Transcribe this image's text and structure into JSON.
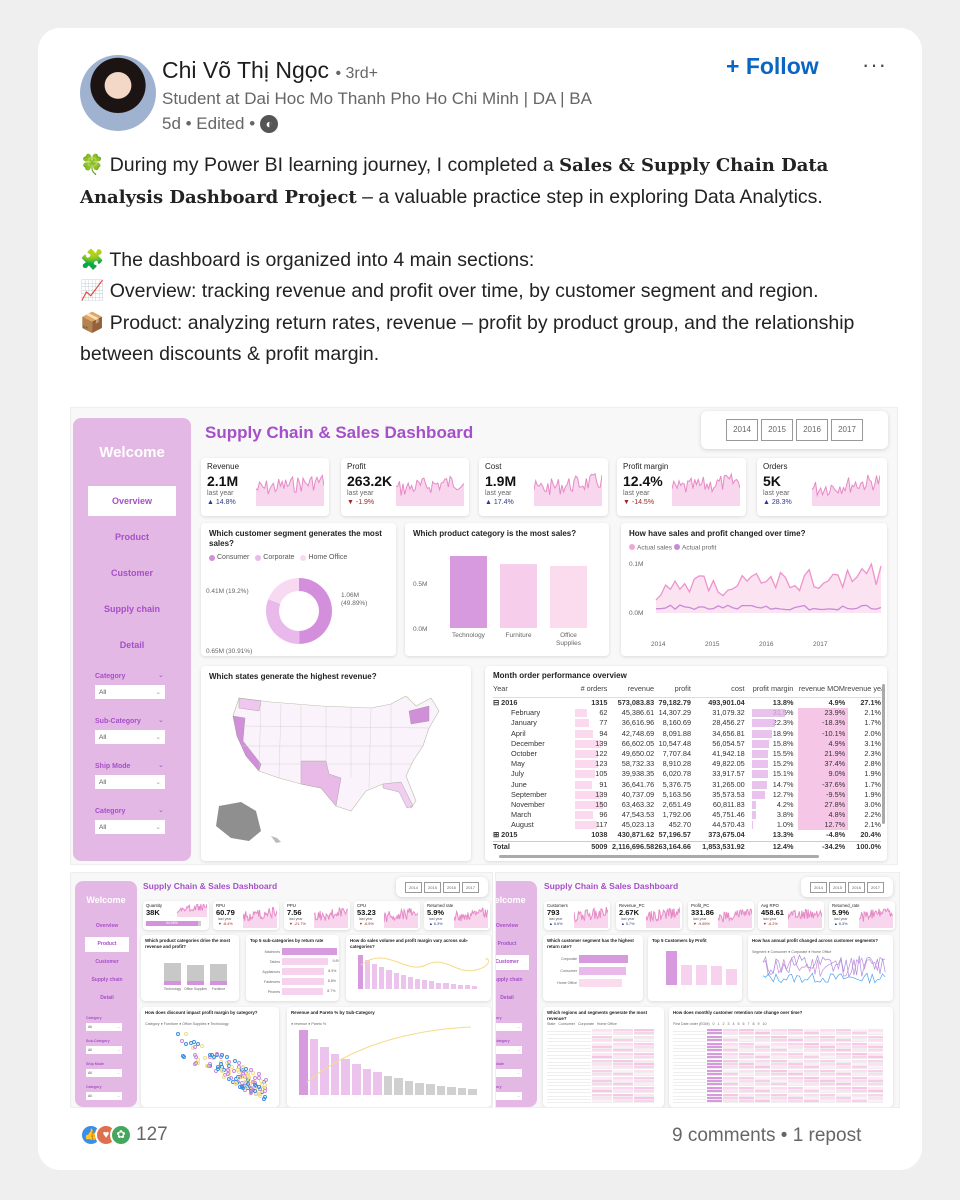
{
  "post": {
    "author": "Chi Võ Thị Ngọc",
    "degree": "• 3rd+",
    "headline": "Student at Dai Hoc Mo Thanh Pho Ho Chi Minh | DA | BA",
    "time": "5d • Edited •",
    "follow_label": "+ Follow",
    "more_label": "···",
    "lines": {
      "l1_emoji": "🍀",
      "l1_a": " During my Power BI learning journey, I completed a ",
      "l1_bold": "Sales & Supply Chain Data Analysis Dashboard Project",
      "l1_b": " – a valuable practice step in exploring Data Analytics.",
      "l2": "🧩 The dashboard is organized into 4 main sections:",
      "l3": "📈 Overview: tracking revenue and profit over time, by customer segment and region.",
      "l4": "📦 Product: analyzing return rates, revenue – profit by product group, and the relationship between discounts & profit margin."
    },
    "reactions_count": "127",
    "social": "9 comments • 1 repost"
  },
  "dashboard": {
    "title": "Supply Chain & Sales Dashboard",
    "welcome": "Welcome",
    "years": [
      "2014",
      "2015",
      "2016",
      "2017"
    ],
    "nav": [
      "Overview",
      "Product",
      "Customer",
      "Supply chain",
      "Detail"
    ],
    "filters": [
      {
        "label": "Category",
        "value": "All"
      },
      {
        "label": "Sub-Category",
        "value": "All"
      },
      {
        "label": "Ship Mode",
        "value": "All"
      },
      {
        "label": "Category",
        "value": "All"
      }
    ],
    "kpis": [
      {
        "label": "Revenue",
        "value": "2.1M",
        "ly": "last year",
        "change": "▲ 14.8%",
        "dir": "up"
      },
      {
        "label": "Profit",
        "value": "263.2K",
        "ly": "last year",
        "change": "▼ -1.9%",
        "dir": "down"
      },
      {
        "label": "Cost",
        "value": "1.9M",
        "ly": "last year",
        "change": "▲ 17.4%",
        "dir": "up"
      },
      {
        "label": "Profit margin",
        "value": "12.4%",
        "ly": "last year",
        "change": "▼ -14.5%",
        "dir": "down"
      },
      {
        "label": "Orders",
        "value": "5K",
        "ly": "last year",
        "change": "▲ 28.3%",
        "dir": "up"
      }
    ],
    "segment": {
      "title": "Which customer segment generates the most sales?",
      "legend": [
        "Consumer",
        "Corporate",
        "Home Office"
      ],
      "colors": [
        "#d38fdb",
        "#e8b9ea",
        "#f8d9f2"
      ],
      "values": [
        49.89,
        30.91,
        19.2
      ],
      "labels": [
        "1.06M (49.89%)",
        "0.65M (30.91%)",
        "0.41M (19.2%)"
      ]
    },
    "category": {
      "title": "Which product category is the most sales?",
      "categories": [
        "Technology",
        "Furniture",
        "Office Supplies"
      ],
      "values": [
        0.8,
        0.71,
        0.69
      ],
      "colors": [
        "#d89ade",
        "#f6cdea",
        "#fbdcef"
      ],
      "ticks": [
        "0.5M",
        "0.0M"
      ]
    },
    "trend": {
      "title": "How have sales and profit changed over time?",
      "legend": [
        "Actual sales",
        "Actual profit"
      ],
      "ticks": [
        "0.1M",
        "0.0M"
      ],
      "years": [
        "2014",
        "2015",
        "2016",
        "2017"
      ]
    },
    "map": {
      "title": "Which states generate the highest revenue?"
    },
    "table": {
      "title": "Month order performance overview",
      "headers": [
        "Year",
        "# orders",
        "revenue",
        "profit",
        "cost",
        "profit margin",
        "revenue MOM",
        "revenue yea"
      ],
      "group": [
        "⊟ 2016",
        "1315",
        "573,083.83",
        "79,182.79",
        "493,901.04",
        "13.8%",
        "4.9%",
        "27.1%"
      ],
      "rows": [
        [
          "February",
          "62",
          "45,386.61",
          "14,307.29",
          "31,079.32",
          "31.5%",
          "23.9%",
          "2.1%"
        ],
        [
          "January",
          "77",
          "36,616.96",
          "8,160.69",
          "28,456.27",
          "22.3%",
          "-18.3%",
          "1.7%"
        ],
        [
          "April",
          "94",
          "42,748.69",
          "8,091.88",
          "34,656.81",
          "18.9%",
          "-10.1%",
          "2.0%"
        ],
        [
          "December",
          "139",
          "66,602.05",
          "10,547.48",
          "56,054.57",
          "15.8%",
          "4.9%",
          "3.1%"
        ],
        [
          "October",
          "122",
          "49,650.02",
          "7,707.84",
          "41,942.18",
          "15.5%",
          "21.9%",
          "2.3%"
        ],
        [
          "May",
          "123",
          "58,732.33",
          "8,910.28",
          "49,822.05",
          "15.2%",
          "37.4%",
          "2.8%"
        ],
        [
          "July",
          "105",
          "39,938.35",
          "6,020.78",
          "33,917.57",
          "15.1%",
          "9.0%",
          "1.9%"
        ],
        [
          "June",
          "91",
          "36,641.76",
          "5,376.75",
          "31,265.00",
          "14.7%",
          "-37.6%",
          "1.7%"
        ],
        [
          "September",
          "139",
          "40,737.09",
          "5,163.56",
          "35,573.53",
          "12.7%",
          "-9.5%",
          "1.9%"
        ],
        [
          "November",
          "150",
          "63,463.32",
          "2,651.49",
          "60,811.83",
          "4.2%",
          "27.8%",
          "3.0%"
        ],
        [
          "March",
          "96",
          "47,543.53",
          "1,792.06",
          "45,751.46",
          "3.8%",
          "4.8%",
          "2.2%"
        ],
        [
          "August",
          "117",
          "45,023.13",
          "452.70",
          "44,570.43",
          "1.0%",
          "12.7%",
          "2.1%"
        ]
      ],
      "group2": [
        "⊞ 2015",
        "1038",
        "430,871.62",
        "57,196.57",
        "373,675.04",
        "13.3%",
        "-4.8%",
        "20.4%"
      ],
      "total": [
        "Total",
        "5009",
        "2,116,696.58",
        "263,164.66",
        "1,853,531.92",
        "12.4%",
        "-34.2%",
        "100.0%"
      ]
    }
  },
  "product_page": {
    "active": 1,
    "kpis": [
      {
        "label": "Quantity",
        "value": "38K",
        "ly": "94.09%",
        "change": "",
        "dir": "up"
      },
      {
        "label": "RPU",
        "value": "60.79",
        "ly": "last year",
        "change": "▼ -8.4%",
        "dir": "down"
      },
      {
        "label": "PPU",
        "value": "7.56",
        "ly": "last year",
        "change": "▼ -21.7%",
        "dir": "down"
      },
      {
        "label": "CPU",
        "value": "53.23",
        "ly": "last year",
        "change": "▼ -6.5%",
        "dir": "down"
      },
      {
        "label": "Returned rate",
        "value": "5.9%",
        "ly": "last year",
        "change": "▲ 6.3%",
        "dir": "up"
      }
    ],
    "panels": [
      {
        "title": "Which product categories drive the most revenue and profit?",
        "kind": "stack",
        "cats": [
          "Technology",
          "Office Supplies",
          "Furniture"
        ]
      },
      {
        "title": "Top 5 sub-categories by return rate",
        "kind": "hbar",
        "cats": [
          "Machines",
          "Tables",
          "Appliances",
          "Fasteners",
          "Phones"
        ],
        "vals": [
          "11.6%",
          "9.8%",
          "8.9%",
          "8.8%",
          "8.7%"
        ],
        "nums": [
          11.6,
          9.8,
          8.9,
          8.8,
          8.7
        ]
      },
      {
        "title": "How do sales volume and profit margin vary across sub-categories?",
        "kind": "combo"
      },
      {
        "title": "How does discount impact profit margin by category?",
        "kind": "scatter",
        "legend": "Category ● Furniture ● Office Supplies ● Technology"
      },
      {
        "title": "Revenue and Pareto % by Sub-Category",
        "kind": "pareto",
        "legend": "● revenue ● Pareto %"
      }
    ]
  },
  "customer_page": {
    "active": 2,
    "kpis": [
      {
        "label": "Customers",
        "value": "793",
        "ly": "last year",
        "change": "▲ 8.6%",
        "dir": "up"
      },
      {
        "label": "Revenue_PC",
        "value": "2.67K",
        "ly": "last year",
        "change": "▲ 5.7%",
        "dir": "up"
      },
      {
        "label": "Profit_PC",
        "value": "331.86",
        "ly": "last year",
        "change": "▼ -9.65%",
        "dir": "down"
      },
      {
        "label": "Avg RPO",
        "value": "458.61",
        "ly": "last year",
        "change": "▼ -6.2%",
        "dir": "down"
      },
      {
        "label": "Returned_rate",
        "value": "5.9%",
        "ly": "last year",
        "change": "▲ 6.3%",
        "dir": "up"
      }
    ],
    "panels": [
      {
        "title": "Which customer segment has the highest return rate?",
        "kind": "hbar3",
        "cats": [
          "Corporate",
          "Consumer",
          "Home Office"
        ],
        "nums": [
          10,
          9.5,
          8.8
        ]
      },
      {
        "title": "Top 5 Customers by Profit",
        "kind": "vbar",
        "nums": [
          10,
          6,
          5.8,
          5.6,
          4.8
        ]
      },
      {
        "title": "How has annual profit changed across customer segments?",
        "kind": "lines",
        "legend": "Segment ● Consumer ● Corporate ● Home Office"
      },
      {
        "title": "Which regions and segments generate the most revenue?",
        "kind": "grid",
        "legend": "State   Consumer   Corporate   Home Office"
      },
      {
        "title": "How does monthly customer retention rate change over time?",
        "kind": "heat",
        "legend": "First Date order (EOM)   0   1   2   3   4   5   6   7   8   9   10"
      }
    ]
  }
}
